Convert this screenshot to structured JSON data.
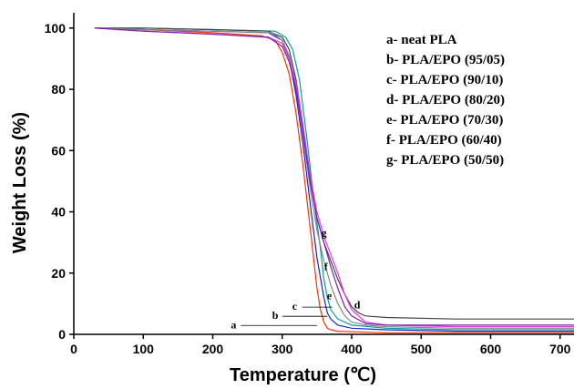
{
  "chart_data": {
    "type": "line",
    "xlabel": "Temperature (℃)",
    "ylabel": "Weight Loss (%)",
    "xlim": [
      0,
      720
    ],
    "ylim": [
      0,
      105
    ],
    "xticks": [
      0,
      100,
      200,
      300,
      400,
      500,
      600,
      700
    ],
    "yticks": [
      0,
      20,
      40,
      60,
      80,
      100
    ],
    "grid": false,
    "legend_position": "top-right",
    "legend": [
      "a- neat PLA",
      "b- PLA/EPO (95/05)",
      "c- PLA/EPO (90/10)",
      "d- PLA/EPO (80/20)",
      "e- PLA/EPO (70/30)",
      "f- PLA/EPO (60/40)",
      "g- PLA/EPO (50/50)"
    ],
    "series": [
      {
        "id": "a",
        "color": "#ff3300",
        "x": [
          30,
          100,
          200,
          270,
          290,
          300,
          310,
          320,
          330,
          340,
          350,
          355,
          360,
          365,
          370,
          380,
          450,
          550,
          720
        ],
        "y": [
          100,
          99.5,
          98.5,
          97.5,
          96,
          92,
          85,
          72,
          55,
          35,
          15,
          8,
          4,
          2,
          1.5,
          1,
          0.5,
          0.5,
          0.5
        ]
      },
      {
        "id": "b",
        "color": "#2222cc",
        "x": [
          30,
          100,
          200,
          280,
          300,
          310,
          320,
          330,
          340,
          350,
          360,
          365,
          370,
          380,
          400,
          450,
          550,
          720
        ],
        "y": [
          100,
          99.5,
          99,
          98.5,
          96,
          90,
          78,
          62,
          43,
          25,
          12,
          7,
          5,
          3,
          2,
          1.5,
          1,
          1
        ]
      },
      {
        "id": "c",
        "color": "#00a0a0",
        "x": [
          30,
          100,
          200,
          290,
          305,
          315,
          325,
          335,
          345,
          355,
          360,
          365,
          370,
          380,
          400,
          450,
          550,
          720
        ],
        "y": [
          100,
          100,
          99.5,
          99,
          97,
          93,
          83,
          65,
          45,
          28,
          18,
          12,
          8,
          5,
          3,
          2,
          1.5,
          1.5
        ]
      },
      {
        "id": "d",
        "color": "#444444",
        "x": [
          30,
          100,
          200,
          280,
          300,
          310,
          320,
          330,
          340,
          350,
          360,
          370,
          380,
          390,
          400,
          410,
          420,
          450,
          550,
          720
        ],
        "y": [
          100,
          100,
          99.5,
          99,
          97,
          93,
          83,
          68,
          52,
          38,
          30,
          24,
          18,
          13,
          9,
          7,
          6,
          5.5,
          5,
          5
        ]
      },
      {
        "id": "e",
        "color": "#888888",
        "x": [
          30,
          100,
          200,
          285,
          300,
          310,
          320,
          330,
          340,
          350,
          360,
          370,
          380,
          390,
          400,
          420,
          450,
          550,
          720
        ],
        "y": [
          100,
          99.5,
          99,
          98.5,
          96,
          91,
          81,
          65,
          48,
          34,
          24,
          16,
          10,
          6,
          4,
          3,
          2.5,
          2,
          2
        ]
      },
      {
        "id": "f",
        "color": "#ee33ee",
        "x": [
          30,
          100,
          200,
          280,
          300,
          310,
          320,
          330,
          340,
          350,
          360,
          370,
          380,
          390,
          400,
          420,
          450,
          550,
          720
        ],
        "y": [
          100,
          99,
          98,
          97,
          95,
          90,
          82,
          68,
          52,
          40,
          32,
          26,
          20,
          13,
          8,
          4,
          3,
          2.5,
          2.5
        ]
      },
      {
        "id": "g",
        "color": "#7722aa",
        "x": [
          30,
          100,
          200,
          280,
          300,
          310,
          320,
          330,
          340,
          350,
          360,
          370,
          380,
          390,
          400,
          420,
          450,
          550,
          720
        ],
        "y": [
          100,
          99,
          98,
          97,
          94,
          89,
          80,
          66,
          50,
          38,
          30,
          22,
          15,
          9,
          6,
          3.5,
          3,
          3,
          3
        ]
      }
    ],
    "curve_labels": [
      {
        "text": "a",
        "x": 230,
        "y": 2,
        "leader_to_x": 350
      },
      {
        "text": "b",
        "x": 290,
        "y": 5,
        "leader_to_x": 365
      },
      {
        "text": "c",
        "x": 318,
        "y": 8,
        "leader_to_x": 372
      },
      {
        "text": "d",
        "x": 408,
        "y": 8.5
      },
      {
        "text": "e",
        "x": 368,
        "y": 11.5
      },
      {
        "text": "f",
        "x": 363,
        "y": 21
      },
      {
        "text": "g",
        "x": 360,
        "y": 32
      }
    ]
  }
}
